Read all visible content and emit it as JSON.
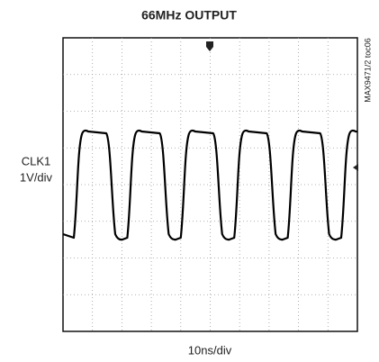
{
  "title": "66MHz OUTPUT",
  "channel": {
    "name": "CLK1",
    "scale": "1V/div"
  },
  "time_scale": "10ns/div",
  "figure_id": "MAX9471/2 toc06"
}
